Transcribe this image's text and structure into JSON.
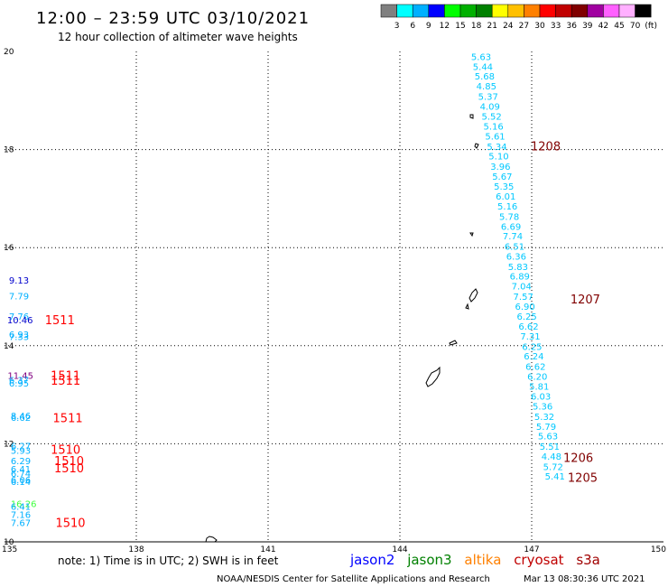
{
  "header": {
    "title": "12:00 – 23:59 UTC 03/10/2021",
    "subtitle": "12 hour collection of altimeter wave heights"
  },
  "colorbar": {
    "labels": [
      "3",
      "6",
      "9",
      "12",
      "15",
      "18",
      "21",
      "24",
      "27",
      "30",
      "33",
      "36",
      "39",
      "42",
      "45",
      "70",
      "(ft)"
    ],
    "colors": [
      "#808080",
      "#00ffff",
      "#00b0ff",
      "#0000ff",
      "#00ff00",
      "#00b000",
      "#008000",
      "#ffff00",
      "#ffc000",
      "#ff8000",
      "#ff0000",
      "#c00000",
      "#800000",
      "#a000a0",
      "#ff60ff",
      "#ffb0ff",
      "#000000"
    ]
  },
  "footer": {
    "note": "note:  1) Time is in UTC; 2) SWH is in feet",
    "satellites": [
      {
        "name": "jason2",
        "color": "#0000ff"
      },
      {
        "name": "jason3",
        "color": "#008000"
      },
      {
        "name": "altika",
        "color": "#ff8000"
      },
      {
        "name": "cryosat",
        "color": "#c00000"
      },
      {
        "name": "s3a",
        "color": "#a00000"
      }
    ],
    "credit": "NOAA/NESDIS Center for Satellite Applications and Research",
    "timestamp": "Mar 13 08:30:36 UTC 2021"
  },
  "chart_data": {
    "type": "scatter",
    "xlim": [
      135,
      150
    ],
    "ylim": [
      10,
      20
    ],
    "x_ticks": [
      135,
      138,
      141,
      144,
      147,
      150
    ],
    "y_ticks": [
      10,
      12,
      14,
      16,
      18,
      20
    ],
    "y_tick_labels": [
      "10",
      "12",
      "14",
      "16",
      "18",
      "20"
    ],
    "grid": true,
    "points": [
      {
        "x": 145.62,
        "y": 19.9,
        "label": "5.63",
        "color": "#00c8ff"
      },
      {
        "x": 145.66,
        "y": 19.7,
        "label": "5.44",
        "color": "#00c8ff"
      },
      {
        "x": 145.7,
        "y": 19.5,
        "label": "5.68",
        "color": "#00c8ff"
      },
      {
        "x": 145.74,
        "y": 19.3,
        "label": "4.85",
        "color": "#00c8ff"
      },
      {
        "x": 145.78,
        "y": 19.09,
        "label": "5.37",
        "color": "#00c8ff"
      },
      {
        "x": 145.82,
        "y": 18.89,
        "label": "4.09",
        "color": "#00c8ff"
      },
      {
        "x": 145.86,
        "y": 18.68,
        "label": "5.52",
        "color": "#00c8ff"
      },
      {
        "x": 145.9,
        "y": 18.48,
        "label": "5.16",
        "color": "#00c8ff"
      },
      {
        "x": 145.94,
        "y": 18.28,
        "label": "5.61",
        "color": "#00c8ff"
      },
      {
        "x": 145.98,
        "y": 18.07,
        "label": "5.34",
        "color": "#00c8ff"
      },
      {
        "x": 146.02,
        "y": 17.87,
        "label": "5.10",
        "color": "#00c8ff"
      },
      {
        "x": 146.06,
        "y": 17.66,
        "label": "3.96",
        "color": "#00c8ff"
      },
      {
        "x": 146.1,
        "y": 17.46,
        "label": "5.67",
        "color": "#00c8ff"
      },
      {
        "x": 146.14,
        "y": 17.26,
        "label": "5.35",
        "color": "#00c8ff"
      },
      {
        "x": 146.18,
        "y": 17.05,
        "label": "6.01",
        "color": "#00c8ff"
      },
      {
        "x": 146.22,
        "y": 16.85,
        "label": "5.16",
        "color": "#00c8ff"
      },
      {
        "x": 146.26,
        "y": 16.64,
        "label": "5.78",
        "color": "#00c8ff"
      },
      {
        "x": 146.3,
        "y": 16.44,
        "label": "6.69",
        "color": "#00c8ff"
      },
      {
        "x": 146.34,
        "y": 16.24,
        "label": "7.74",
        "color": "#00c8ff"
      },
      {
        "x": 146.38,
        "y": 16.03,
        "label": "6.51",
        "color": "#00c8ff"
      },
      {
        "x": 146.42,
        "y": 15.83,
        "label": "6.36",
        "color": "#00c8ff"
      },
      {
        "x": 146.46,
        "y": 15.62,
        "label": "5.83",
        "color": "#00c8ff"
      },
      {
        "x": 146.5,
        "y": 15.42,
        "label": "6.89",
        "color": "#00c8ff"
      },
      {
        "x": 146.54,
        "y": 15.22,
        "label": "7.04",
        "color": "#00c8ff"
      },
      {
        "x": 146.58,
        "y": 15.01,
        "label": "7.57",
        "color": "#00c8ff"
      },
      {
        "x": 146.62,
        "y": 14.81,
        "label": "6.90",
        "color": "#00c8ff"
      },
      {
        "x": 146.66,
        "y": 14.6,
        "label": "6.25",
        "color": "#00c8ff"
      },
      {
        "x": 146.7,
        "y": 14.4,
        "label": "6.62",
        "color": "#00c8ff"
      },
      {
        "x": 146.74,
        "y": 14.2,
        "label": "7.31",
        "color": "#00c8ff"
      },
      {
        "x": 146.78,
        "y": 13.99,
        "label": "6.25",
        "color": "#00c8ff"
      },
      {
        "x": 146.82,
        "y": 13.79,
        "label": "6.24",
        "color": "#00c8ff"
      },
      {
        "x": 146.86,
        "y": 13.58,
        "label": "6.62",
        "color": "#00c8ff"
      },
      {
        "x": 146.9,
        "y": 13.38,
        "label": "6.20",
        "color": "#00c8ff"
      },
      {
        "x": 146.94,
        "y": 13.18,
        "label": "5.81",
        "color": "#00c8ff"
      },
      {
        "x": 146.98,
        "y": 12.97,
        "label": "6.03",
        "color": "#00c8ff"
      },
      {
        "x": 147.02,
        "y": 12.77,
        "label": "5.36",
        "color": "#00c8ff"
      },
      {
        "x": 147.06,
        "y": 12.56,
        "label": "5.32",
        "color": "#00c8ff"
      },
      {
        "x": 147.1,
        "y": 12.36,
        "label": "5.79",
        "color": "#00c8ff"
      },
      {
        "x": 147.14,
        "y": 12.16,
        "label": "5.63",
        "color": "#00c8ff"
      },
      {
        "x": 147.18,
        "y": 11.95,
        "label": "5.51",
        "color": "#00c8ff"
      },
      {
        "x": 147.22,
        "y": 11.75,
        "label": "4.48",
        "color": "#00c8ff"
      },
      {
        "x": 147.26,
        "y": 11.54,
        "label": "5.72",
        "color": "#00c8ff"
      },
      {
        "x": 147.3,
        "y": 11.34,
        "label": "5.41",
        "color": "#00c8ff"
      },
      {
        "x": 135.1,
        "y": 15.34,
        "label": "9.13",
        "color": "#0000cc"
      },
      {
        "x": 135.1,
        "y": 15.02,
        "label": "7.79",
        "color": "#00b0ff"
      },
      {
        "x": 135.1,
        "y": 14.6,
        "label": "7.76",
        "color": "#00b0ff"
      },
      {
        "x": 135.06,
        "y": 14.53,
        "label": "10.46",
        "color": "#0000cc"
      },
      {
        "x": 135.1,
        "y": 14.24,
        "label": "6.93",
        "color": "#00b0ff"
      },
      {
        "x": 135.1,
        "y": 14.19,
        "label": "7.33",
        "color": "#00b0ff"
      },
      {
        "x": 135.07,
        "y": 13.4,
        "label": "11.45",
        "color": "#800080"
      },
      {
        "x": 135.1,
        "y": 13.31,
        "label": "6.37",
        "color": "#00b0ff"
      },
      {
        "x": 135.1,
        "y": 13.24,
        "label": "6.95",
        "color": "#00b0ff"
      },
      {
        "x": 135.14,
        "y": 12.58,
        "label": "8.46",
        "color": "#00b0ff"
      },
      {
        "x": 135.14,
        "y": 12.54,
        "label": "6.62",
        "color": "#00b0ff"
      },
      {
        "x": 135.14,
        "y": 11.96,
        "label": "6.27",
        "color": "#00b0ff"
      },
      {
        "x": 135.14,
        "y": 11.87,
        "label": "5.93",
        "color": "#00b0ff"
      },
      {
        "x": 135.14,
        "y": 11.66,
        "label": "6.29",
        "color": "#00b0ff"
      },
      {
        "x": 135.14,
        "y": 11.49,
        "label": "6.41",
        "color": "#00b0ff"
      },
      {
        "x": 135.14,
        "y": 11.4,
        "label": "6.74",
        "color": "#00b0ff"
      },
      {
        "x": 135.14,
        "y": 11.27,
        "label": "6.06",
        "color": "#00b0ff"
      },
      {
        "x": 135.14,
        "y": 11.23,
        "label": "6.14",
        "color": "#00b0ff"
      },
      {
        "x": 135.14,
        "y": 10.78,
        "label": "16.26",
        "color": "#40ff40"
      },
      {
        "x": 135.14,
        "y": 10.73,
        "label": "6.41",
        "color": "#00b0ff"
      },
      {
        "x": 135.14,
        "y": 10.56,
        "label": "7.16",
        "color": "#00b0ff"
      },
      {
        "x": 135.14,
        "y": 10.4,
        "label": "7.67",
        "color": "#00b0ff"
      }
    ],
    "revolutions": [
      {
        "x": 146.98,
        "y": 18.08,
        "label": "1208",
        "color": "#800000"
      },
      {
        "x": 147.88,
        "y": 14.95,
        "label": "1207",
        "color": "#800000"
      },
      {
        "x": 147.72,
        "y": 11.72,
        "label": "1206",
        "color": "#800000"
      },
      {
        "x": 147.82,
        "y": 11.32,
        "label": "1205",
        "color": "#800000"
      },
      {
        "x": 135.92,
        "y": 14.53,
        "label": "1511",
        "color": "#ff0000"
      },
      {
        "x": 136.05,
        "y": 13.3,
        "label": "1511",
        "color": "#ff0000"
      },
      {
        "x": 136.05,
        "y": 13.4,
        "label": "1511",
        "color": "#ff0000"
      },
      {
        "x": 136.1,
        "y": 12.53,
        "label": "1511",
        "color": "#ff0000"
      },
      {
        "x": 136.05,
        "y": 11.89,
        "label": "1510",
        "color": "#ff0000"
      },
      {
        "x": 136.13,
        "y": 11.66,
        "label": "1510",
        "color": "#ff0000"
      },
      {
        "x": 136.13,
        "y": 11.51,
        "label": "1510",
        "color": "#ff0000"
      },
      {
        "x": 136.16,
        "y": 10.4,
        "label": "1510",
        "color": "#ff0000"
      }
    ]
  }
}
